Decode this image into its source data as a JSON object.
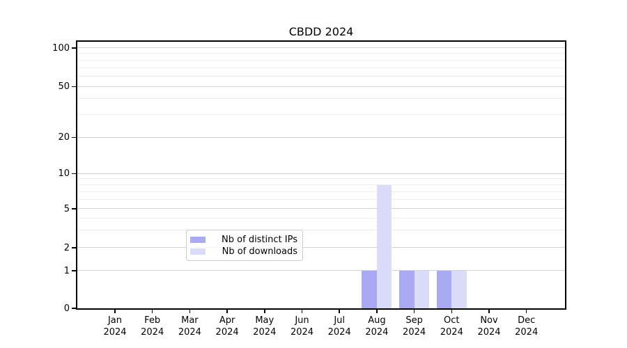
{
  "title": "CBDD 2024",
  "colors": {
    "distinct_ips_bar": "#a9a9f4",
    "downloads_bar": "#dbdbfa",
    "grid_major": "#d2d2d2",
    "grid_minor": "#ebebeb",
    "axis": "#000000",
    "legend_border": "#cccccc"
  },
  "legend": {
    "entries": [
      "Nb of distinct IPs",
      "Nb of downloads"
    ]
  },
  "chart_data": {
    "type": "bar",
    "title": "CBDD 2024",
    "categories": [
      "Jan 2024",
      "Feb 2024",
      "Mar 2024",
      "Apr 2024",
      "May 2024",
      "Jun 2024",
      "Jul 2024",
      "Aug 2024",
      "Sep 2024",
      "Oct 2024",
      "Nov 2024",
      "Dec 2024"
    ],
    "series": [
      {
        "name": "Nb of distinct IPs",
        "color": "#a9a9f4",
        "values": [
          0,
          0,
          0,
          0,
          0,
          0,
          0,
          1,
          1,
          1,
          0,
          0
        ]
      },
      {
        "name": "Nb of downloads",
        "color": "#dbdbfa",
        "values": [
          0,
          0,
          0,
          0,
          0,
          0,
          0,
          8,
          1,
          1,
          0,
          0
        ]
      }
    ],
    "xlabel": "",
    "ylabel": "",
    "yticks": [
      0,
      1,
      2,
      5,
      10,
      20,
      50,
      100
    ],
    "ylim": [
      0,
      100
    ],
    "yscale": "log-like (0,1,2,5,10,20,50,100 labeled ticks, log-interpolated minors)",
    "grid": true,
    "legend_position": "lower center, inside plot"
  }
}
